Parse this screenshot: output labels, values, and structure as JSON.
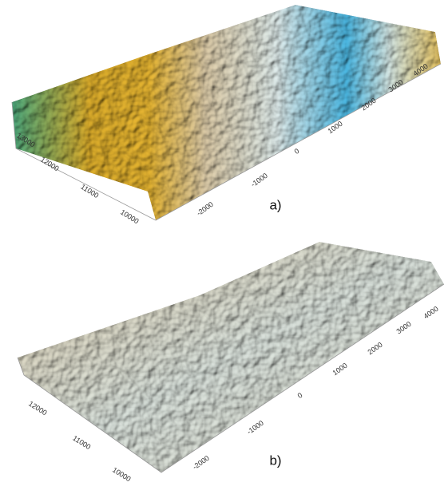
{
  "panels": [
    {
      "label": "a)",
      "y_ticks": [
        "13000",
        "12000",
        "11000",
        "10000"
      ],
      "x_ticks": [
        "-2000",
        "-1000",
        "0",
        "1000",
        "2000",
        "3000",
        "4000"
      ]
    },
    {
      "label": "b)",
      "y_ticks": [
        "12000",
        "11000",
        "10000"
      ],
      "x_ticks": [
        "-2000",
        "-1000",
        "0",
        "1000",
        "2000",
        "3000",
        "4000"
      ]
    }
  ]
}
